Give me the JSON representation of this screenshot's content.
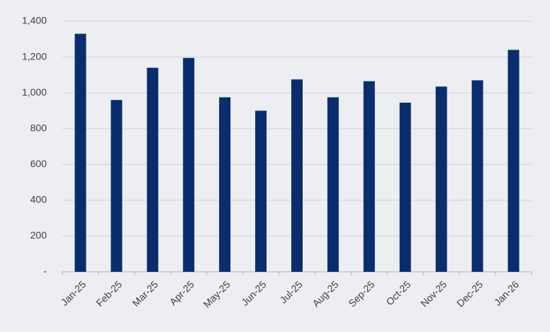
{
  "chart_data": {
    "type": "bar",
    "categories": [
      "Jan-25",
      "Feb-25",
      "Mar-25",
      "Apr-25",
      "May-25",
      "Jun-25",
      "Jul-25",
      "Aug-25",
      "Sep-25",
      "Oct-25",
      "Nov-25",
      "Dec-25",
      "Jan-26"
    ],
    "values": [
      1330,
      960,
      1140,
      1195,
      975,
      900,
      1075,
      975,
      1065,
      945,
      1035,
      1070,
      1240
    ],
    "color": "#0a2d6e",
    "ylim": [
      0,
      1400
    ],
    "yticks": [
      {
        "value": 0,
        "label": "-"
      },
      200,
      400,
      600,
      800,
      {
        "value": 1000,
        "label": "1,000"
      },
      {
        "value": 1200,
        "label": "1,200"
      },
      {
        "value": 1400,
        "label": "1,400"
      }
    ],
    "grid": true
  }
}
